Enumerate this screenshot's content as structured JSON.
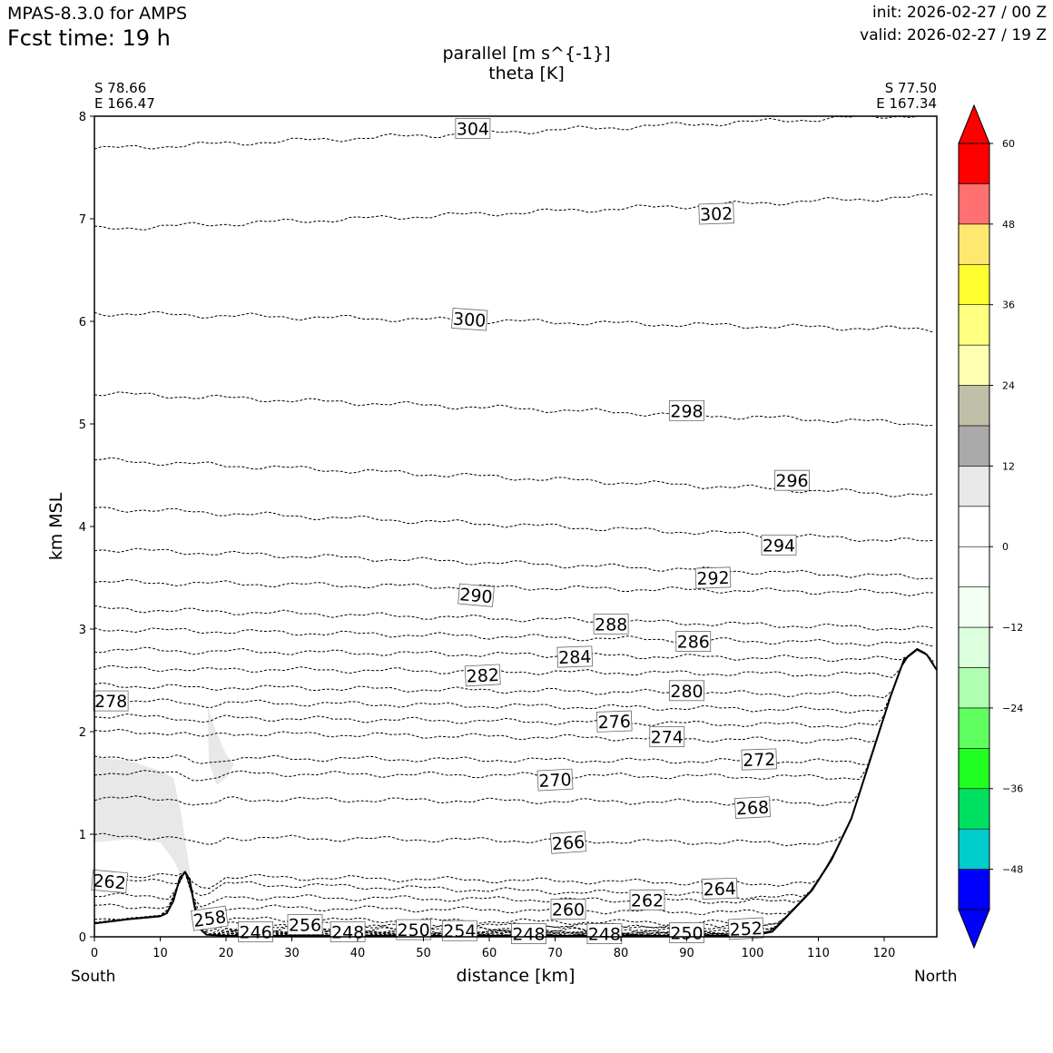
{
  "header": {
    "model": "MPAS-8.3.0 for AMPS",
    "fcst_time": "Fcst time:   19 h",
    "init": "init: 2026-02-27 / 00 Z",
    "valid": "valid: 2026-02-27 / 19 Z"
  },
  "endpoints": {
    "left_lat": "S 78.66",
    "left_lon": "E 166.47",
    "right_lat": "S 77.50",
    "right_lon": "E 167.34",
    "left_dir": "South",
    "right_dir": "North"
  },
  "chart_data": {
    "type": "contour-cross-section",
    "title": "parallel [m s^{-1}]",
    "subtitle": "theta [K]",
    "xlabel": "distance [km]",
    "ylabel": "km MSL",
    "xlim": [
      0,
      128
    ],
    "ylim": [
      0,
      8
    ],
    "x_ticks": [
      "0",
      "10",
      "20",
      "30",
      "40",
      "50",
      "60",
      "70",
      "80",
      "90",
      "100",
      "110",
      "120"
    ],
    "y_ticks": [
      "0",
      "1",
      "2",
      "3",
      "4",
      "5",
      "6",
      "7",
      "8"
    ],
    "colorbar": {
      "ticks": [
        "60",
        "48",
        "36",
        "24",
        "12",
        "0",
        "−12",
        "−24",
        "−36",
        "−48"
      ],
      "colors": [
        "#0000ff",
        "#00cccc",
        "#00e060",
        "#20ff20",
        "#60ff60",
        "#b0ffb0",
        "#dcffdc",
        "#f2fff2",
        "#ffffff",
        "#ffffff",
        "#e8e8e8",
        "#aaaaaa",
        "#c0c0a8",
        "#ffffb0",
        "#ffff80",
        "#ffff30",
        "#ffe870",
        "#ff7070",
        "#ff0000"
      ],
      "extend_low": "#0000ff",
      "extend_high": "#ff0000"
    },
    "terrain": [
      [
        0,
        0.13
      ],
      [
        5,
        0.17
      ],
      [
        10,
        0.2
      ],
      [
        11,
        0.23
      ],
      [
        12,
        0.35
      ],
      [
        13,
        0.58
      ],
      [
        13.8,
        0.63
      ],
      [
        14.5,
        0.55
      ],
      [
        15.2,
        0.3
      ],
      [
        16,
        0.08
      ],
      [
        17,
        0.02
      ],
      [
        20,
        0.01
      ],
      [
        100,
        0.01
      ],
      [
        103,
        0.05
      ],
      [
        106,
        0.25
      ],
      [
        109,
        0.45
      ],
      [
        112,
        0.75
      ],
      [
        115,
        1.15
      ],
      [
        118,
        1.75
      ],
      [
        121,
        2.35
      ],
      [
        123,
        2.7
      ],
      [
        125,
        2.8
      ],
      [
        126.5,
        2.75
      ],
      [
        128,
        2.6
      ]
    ],
    "isentropes": [
      {
        "label": "304",
        "y0": 7.68,
        "y1": 8.02,
        "lx": 57.5,
        "ly": 7.88,
        "rot": 0
      },
      {
        "label": "302",
        "y0": 6.9,
        "y1": 7.22,
        "lx": 94.5,
        "ly": 7.05,
        "rot": -2
      },
      {
        "label": "300",
        "y0": 6.08,
        "y1": 5.92,
        "lx": 57,
        "ly": 6.02,
        "rot": 4
      },
      {
        "label": "298",
        "y0": 5.3,
        "y1": 5.0,
        "lx": 90,
        "ly": 5.13,
        "rot": 0
      },
      {
        "label": "296",
        "y0": 4.65,
        "y1": 4.3,
        "lx": 106,
        "ly": 4.45,
        "rot": 0
      },
      {
        "label": "294",
        "y0": 4.18,
        "y1": 3.85,
        "lx": 104,
        "ly": 3.82,
        "rot": 0
      },
      {
        "label": "292",
        "y0": 3.78,
        "y1": 3.5,
        "lx": 94,
        "ly": 3.5,
        "rot": -2
      },
      {
        "label": "290",
        "y0": 3.46,
        "y1": 3.35,
        "lx": 58,
        "ly": 3.33,
        "rot": 5
      },
      {
        "label": "288",
        "y0": 3.2,
        "y1": 3.0,
        "lx": 78.5,
        "ly": 3.05,
        "rot": 0
      },
      {
        "label": "286",
        "y0": 3.0,
        "y1": 2.85,
        "lx": 91,
        "ly": 2.88,
        "rot": 0
      },
      {
        "label": "284",
        "y0": 2.8,
        "y1": 2.7,
        "lx": 73,
        "ly": 2.73,
        "rot": -2
      },
      {
        "label": "282",
        "y0": 2.62,
        "y1": 2.55,
        "lx": 59,
        "ly": 2.55,
        "rot": -3
      },
      {
        "label": "280",
        "y0": 2.45,
        "y1": 2.35,
        "lx": 90,
        "ly": 2.4,
        "rot": 0
      },
      {
        "label": "278",
        "y0": 2.3,
        "y1": 2.2,
        "lx": 2.5,
        "ly": 2.3,
        "rot": 0
      },
      {
        "label": "276",
        "y0": 2.15,
        "y1": 2.05,
        "lx": 79,
        "ly": 2.1,
        "rot": -2
      },
      {
        "label": "274",
        "y0": 2.0,
        "y1": 1.9,
        "lx": 87,
        "ly": 1.95,
        "rot": 0
      },
      {
        "label": "272",
        "y0": 1.75,
        "y1": 1.7,
        "lx": 101,
        "ly": 1.73,
        "rot": -2
      },
      {
        "label": "270",
        "y0": 1.6,
        "y1": 1.55,
        "lx": 70,
        "ly": 1.53,
        "rot": -3
      },
      {
        "label": "268",
        "y0": 1.35,
        "y1": 1.3,
        "lx": 100,
        "ly": 1.26,
        "rot": -3
      },
      {
        "label": "266",
        "y0": 0.98,
        "y1": 0.9,
        "lx": 72,
        "ly": 0.92,
        "rot": -4
      },
      {
        "label": "264",
        "y0": 0.6,
        "y1": 0.5,
        "lx": 95,
        "ly": 0.47,
        "rot": -2
      },
      {
        "label": "262",
        "y0": 0.55,
        "y1": 0.35,
        "lx": 2.3,
        "ly": 0.54,
        "rot": 5
      },
      {
        "label": "262",
        "y0": 0.4,
        "y1": 0.33,
        "lx": 84,
        "ly": 0.36,
        "rot": 0
      },
      {
        "label": "260",
        "y0": 0.3,
        "y1": 0.22,
        "lx": 72,
        "ly": 0.27,
        "rot": 0
      },
      {
        "label": "258",
        "y0": 0.18,
        "y1": 0.12,
        "lx": 17.5,
        "ly": 0.18,
        "rot": -8
      },
      {
        "label": "256",
        "y0": 0.12,
        "y1": 0.1,
        "lx": 32,
        "ly": 0.12,
        "rot": 0
      },
      {
        "label": "254",
        "y0": 0.07,
        "y1": 0.05,
        "lx": 55.5,
        "ly": 0.06,
        "rot": 0
      },
      {
        "label": "252",
        "y0": 0.1,
        "y1": 0.08,
        "lx": 99,
        "ly": 0.08,
        "rot": -3
      },
      {
        "label": "250",
        "y0": 0.06,
        "y1": 0.04,
        "lx": 48.5,
        "ly": 0.07,
        "rot": 0
      },
      {
        "label": "250",
        "y0": 0.05,
        "y1": 0.03,
        "lx": 90,
        "ly": 0.04,
        "rot": 0
      },
      {
        "label": "248",
        "y0": 0.04,
        "y1": 0.03,
        "lx": 38.5,
        "ly": 0.05,
        "rot": 0
      },
      {
        "label": "248",
        "y0": 0.03,
        "y1": 0.02,
        "lx": 66,
        "ly": 0.03,
        "rot": 0
      },
      {
        "label": "248",
        "y0": 0.03,
        "y1": 0.02,
        "lx": 77.5,
        "ly": 0.03,
        "rot": 0
      },
      {
        "label": "246",
        "y0": 0.03,
        "y1": 0.02,
        "lx": 24.5,
        "ly": 0.05,
        "rot": 0
      }
    ],
    "shading": {
      "level": "6 to 12 m s^{-1}",
      "color": "#e8e8e8"
    }
  }
}
